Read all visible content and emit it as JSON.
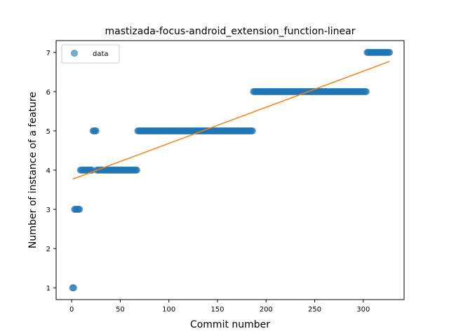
{
  "chart_data": {
    "type": "scatter",
    "title": "mastizada-focus-android_extension_function-linear",
    "xlabel": "Commit number",
    "ylabel": "Number of instance of a feature",
    "xlim": [
      -16,
      342
    ],
    "ylim": [
      0.7,
      7.3
    ],
    "xticks": [
      0,
      50,
      100,
      150,
      200,
      250,
      300
    ],
    "yticks": [
      1,
      2,
      3,
      4,
      5,
      6,
      7
    ],
    "grid": false,
    "legend": {
      "position": "top-left",
      "entries": [
        "data"
      ]
    },
    "colors": {
      "points": "#1f77b4",
      "fit": "#ff7f0e"
    },
    "series": [
      {
        "name": "data",
        "kind": "points",
        "segments": [
          {
            "x_start": 1,
            "x_end": 2,
            "y": 1
          },
          {
            "x_start": 3,
            "x_end": 8,
            "y": 3
          },
          {
            "x_start": 9,
            "x_end": 21,
            "y": 4
          },
          {
            "x_start": 22,
            "x_end": 25,
            "y": 5
          },
          {
            "x_start": 26,
            "x_end": 67,
            "y": 4
          },
          {
            "x_start": 68,
            "x_end": 186,
            "y": 5
          },
          {
            "x_start": 187,
            "x_end": 303,
            "y": 6
          },
          {
            "x_start": 304,
            "x_end": 327,
            "y": 7
          }
        ]
      },
      {
        "kind": "fit-line",
        "x": [
          1,
          327
        ],
        "y": [
          3.77,
          6.77
        ]
      }
    ]
  }
}
